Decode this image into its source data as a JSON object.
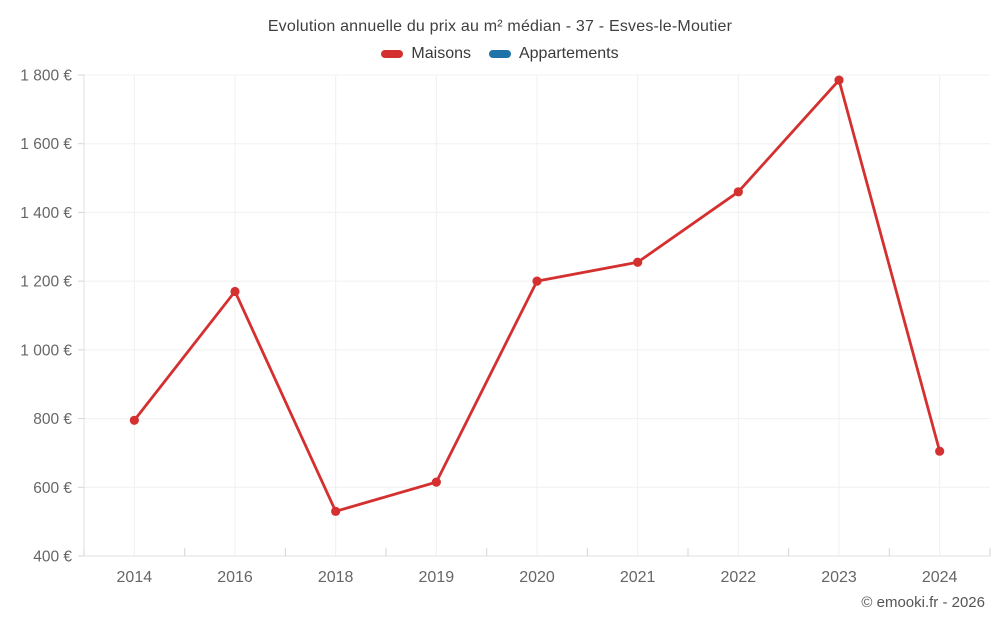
{
  "header": {
    "title": "Evolution annuelle du prix au m² médian - 37 - Esves-le-Moutier"
  },
  "legend": {
    "items": [
      {
        "id": "maisons",
        "label": "Maisons",
        "color": "#d53030"
      },
      {
        "id": "appartements",
        "label": "Appartements",
        "color": "#1f73a8"
      }
    ]
  },
  "footer": {
    "credit": "© emooki.fr - 2026"
  },
  "chart_data": {
    "type": "line",
    "title": "Evolution annuelle du prix au m² médian - 37 - Esves-le-Moutier",
    "categories": [
      "2014",
      "2016",
      "2018",
      "2019",
      "2020",
      "2021",
      "2022",
      "2023",
      "2024"
    ],
    "series": [
      {
        "name": "Maisons",
        "color": "#d53030",
        "values": [
          795,
          1170,
          530,
          615,
          1200,
          1255,
          1460,
          1785,
          705
        ]
      },
      {
        "name": "Appartements",
        "color": "#1f73a8",
        "values": []
      }
    ],
    "xlabel": "",
    "ylabel": "",
    "ylim": [
      400,
      1800
    ],
    "ytick_step": 200,
    "ytick_labels": [
      "400 €",
      "600 €",
      "800 €",
      "1 000 €",
      "1 200 €",
      "1 400 €",
      "1 600 €",
      "1 800 €"
    ],
    "grid": true,
    "legend_position": "top",
    "marker": "circle",
    "colors": {
      "grid": "#f0f0f0",
      "axis_border": "#e0e0e0",
      "tick_mark": "#d6d6d6",
      "tick_label": "#666666",
      "title_text": "#3f3f3f"
    }
  }
}
